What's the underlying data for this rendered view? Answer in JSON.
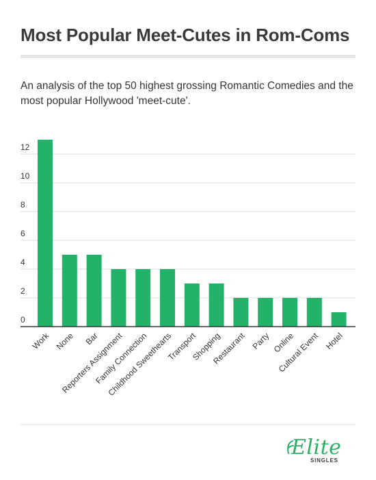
{
  "header": {
    "title": "Most Popular Meet-Cutes in Rom-Coms",
    "subtitle": "An analysis of the top 50 highest grossing Romantic Comedies and the most popular Hollywood 'meet-cute'."
  },
  "brand": {
    "name": "Elite",
    "sub": "SINGLES",
    "color": "#2fae63"
  },
  "chart_data": {
    "type": "bar",
    "categories": [
      "Work",
      "None",
      "Bar",
      "Reporters Assignment",
      "Family Connection",
      "Childhood Sweethearts",
      "Transport",
      "Shopping",
      "Restaurant",
      "Party",
      "Online",
      "Cultural Event",
      "Hotel"
    ],
    "values": [
      13,
      5,
      5,
      4,
      4,
      4,
      3,
      3,
      2,
      2,
      2,
      2,
      1
    ],
    "title": "",
    "xlabel": "",
    "ylabel": "",
    "ylim": [
      0,
      13
    ],
    "yticks": [
      0,
      2,
      4,
      6,
      8,
      10,
      12
    ],
    "grid": true,
    "legend": "none",
    "bar_color": "#22b26a"
  }
}
